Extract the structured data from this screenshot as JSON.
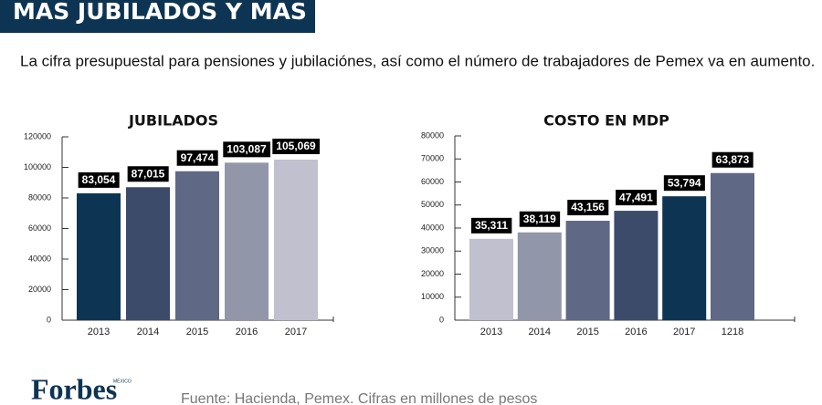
{
  "header": {
    "title": "MAS JUBILADOS Y MAS MILLONES"
  },
  "subtitle": "La cifra presupuestal para pensiones y jubilaciónes, así como el número de trabajadores de Pemex va en aumento.",
  "logo": {
    "name": "Forbes",
    "edition": "MÉXICO"
  },
  "source": "Fuente: Hacienda, Pemex. Cifras en millones de pesos",
  "chart_data": [
    {
      "type": "bar",
      "title": "JUBILADOS",
      "categories": [
        "2013",
        "2014",
        "2015",
        "2016",
        "2017"
      ],
      "values": [
        83054,
        87015,
        97474,
        103087,
        105069
      ],
      "value_labels": [
        "83,054",
        "87,015",
        "97,474",
        "103,087",
        "105,069"
      ],
      "colors": [
        "#0d3452",
        "#3b4b69",
        "#5f6884",
        "#9196a8",
        "#c0c0cf"
      ],
      "ylim": [
        0,
        120000
      ],
      "yticks": [
        0,
        20000,
        40000,
        60000,
        80000,
        100000,
        120000
      ]
    },
    {
      "type": "bar",
      "title": "COSTO EN MDP",
      "categories": [
        "2013",
        "2014",
        "2015",
        "2016",
        "2017",
        "1218"
      ],
      "values": [
        35311,
        38119,
        43156,
        47491,
        53794,
        63873
      ],
      "value_labels": [
        "35,311",
        "38,119",
        "43,156",
        "47,491",
        "53,794",
        "63,873"
      ],
      "colors": [
        "#c0c0cf",
        "#9196a8",
        "#5f6884",
        "#3b4b69",
        "#0d3452",
        "#5f6884"
      ],
      "ylim": [
        0,
        80000
      ],
      "yticks": [
        0,
        10000,
        20000,
        30000,
        40000,
        50000,
        60000,
        70000,
        80000
      ]
    }
  ]
}
